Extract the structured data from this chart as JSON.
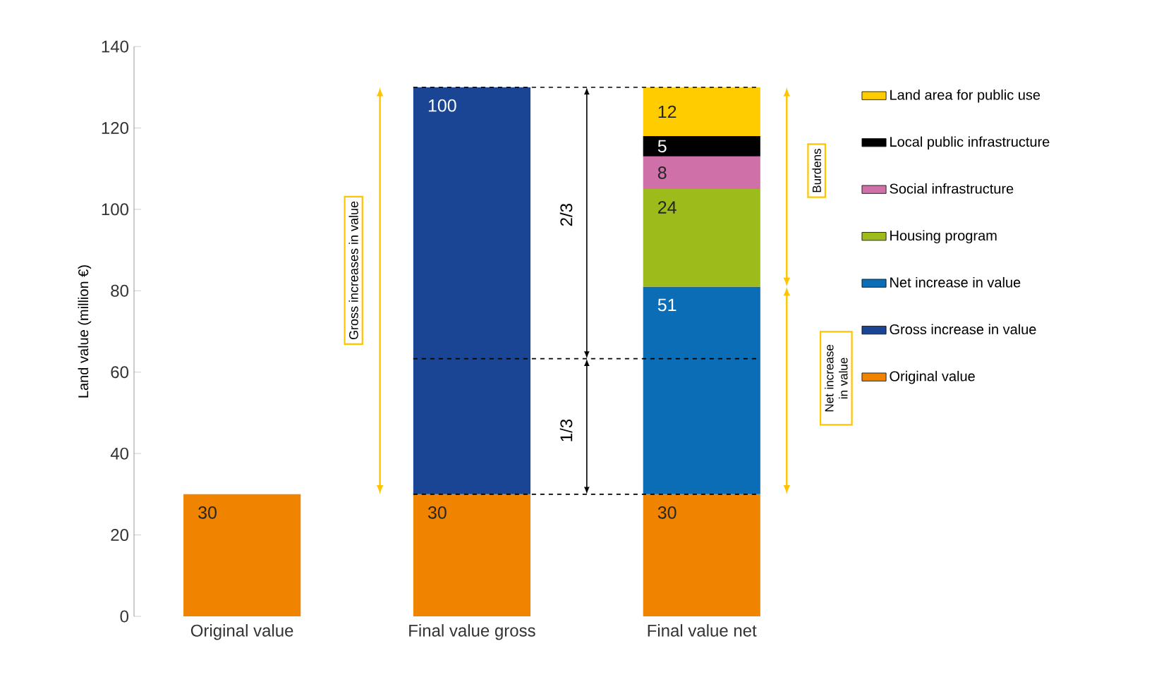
{
  "chart_data": {
    "type": "bar",
    "stacked": true,
    "ylabel": "Land value (million €)",
    "categories": [
      "Original value",
      "Final value gross",
      "Final value net"
    ],
    "ylim": [
      0,
      140
    ],
    "yticks": [
      0,
      20,
      40,
      60,
      80,
      100,
      120,
      140
    ],
    "series": [
      {
        "name": "Original value",
        "color": "#f08300",
        "values": [
          30,
          30,
          30
        ]
      },
      {
        "name": "Gross increase in value",
        "color": "#1a4594",
        "values": [
          null,
          100,
          null
        ]
      },
      {
        "name": "Net increase in value",
        "color": "#0a6db6",
        "values": [
          null,
          null,
          51
        ]
      },
      {
        "name": "Housing program",
        "color": "#9dbb1a",
        "values": [
          null,
          null,
          24
        ]
      },
      {
        "name": "Social infrastructure",
        "color": "#d070a8",
        "values": [
          null,
          null,
          8
        ]
      },
      {
        "name": "Local public infrastructure",
        "color": "#000000",
        "values": [
          null,
          null,
          5
        ]
      },
      {
        "name": "Land area for public use",
        "color": "#ffcc00",
        "values": [
          null,
          null,
          12
        ]
      }
    ],
    "data_labels": true,
    "legend": "right",
    "grid": false,
    "ref_lines": [
      {
        "axis": "y",
        "value": 130,
        "line_style": "dashed"
      },
      {
        "axis": "y",
        "value": 63.3,
        "line_style": "dashed"
      },
      {
        "axis": "y",
        "value": 30,
        "line_style": "dashed"
      }
    ],
    "annotations": [
      "Gross increases in value",
      "2/3",
      "1/3",
      "Burdens",
      "Net increase in value"
    ]
  }
}
